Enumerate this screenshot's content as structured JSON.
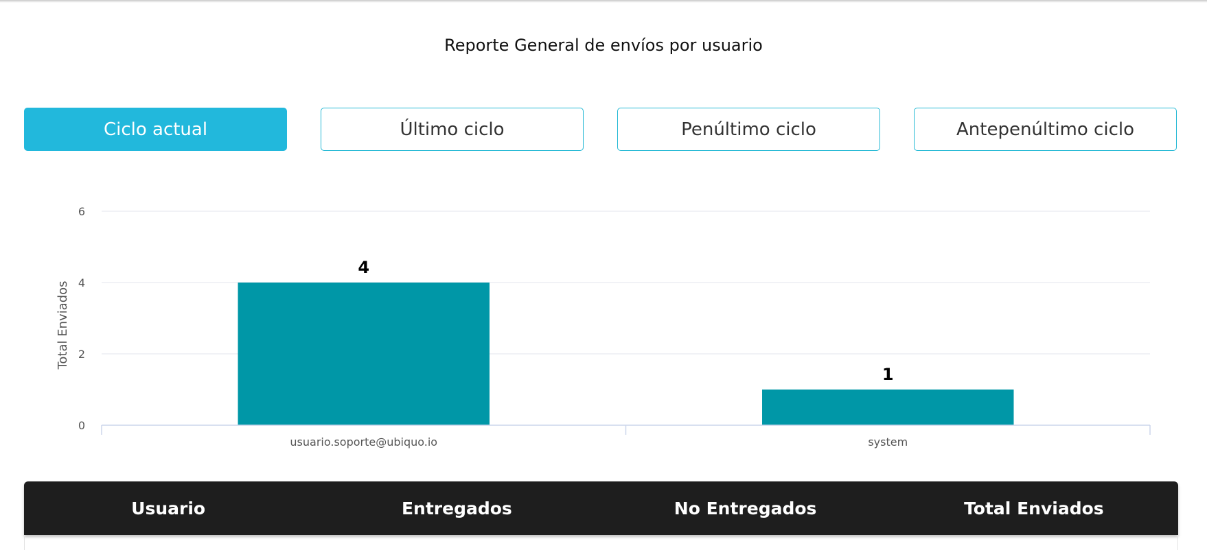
{
  "title": "Reporte General de envíos por usuario",
  "tabs": [
    {
      "label": "Ciclo actual",
      "active": true
    },
    {
      "label": "Último ciclo",
      "active": false
    },
    {
      "label": "Penúltimo ciclo",
      "active": false
    },
    {
      "label": "Antepenúltimo ciclo",
      "active": false
    }
  ],
  "colors": {
    "accent": "#22b8dc",
    "bar": "#0097a7",
    "table_header": "#1e1e1e"
  },
  "chart_data": {
    "type": "bar",
    "categories": [
      "usuario.soporte@ubiquo.io",
      "system"
    ],
    "values": [
      4,
      1
    ],
    "data_labels": [
      "4",
      "1"
    ],
    "ylabel": "Total Enviados",
    "xlabel": "",
    "ylim": [
      0,
      6
    ],
    "yticks": [
      0,
      2,
      4,
      6
    ],
    "grid": true
  },
  "table": {
    "columns": [
      "Usuario",
      "Entregados",
      "No Entregados",
      "Total Enviados"
    ]
  }
}
